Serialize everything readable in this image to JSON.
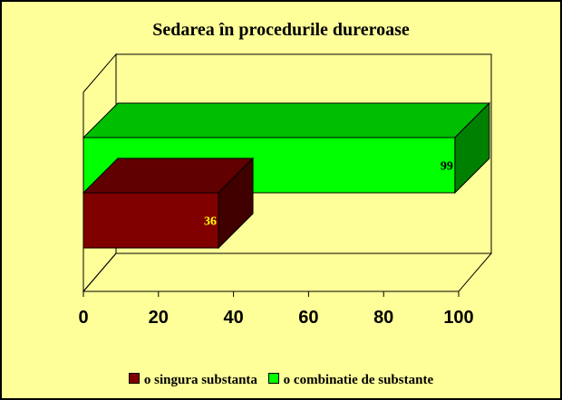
{
  "chart_data": {
    "type": "bar",
    "orientation": "horizontal",
    "three_d": true,
    "title": "Sedarea în procedurile dureroase",
    "xlabel": "",
    "ylabel": "",
    "xlim": [
      0,
      100
    ],
    "ticks": [
      "0",
      "20",
      "40",
      "60",
      "80",
      "100"
    ],
    "grid": false,
    "legend_position": "bottom",
    "series": [
      {
        "name": "o singura substanta",
        "values": [
          36
        ],
        "color": "#800000",
        "label_color": "#ffff00"
      },
      {
        "name": "o combinatie de substante",
        "values": [
          99
        ],
        "color": "#00ff00",
        "label_color": "#000000"
      }
    ]
  }
}
